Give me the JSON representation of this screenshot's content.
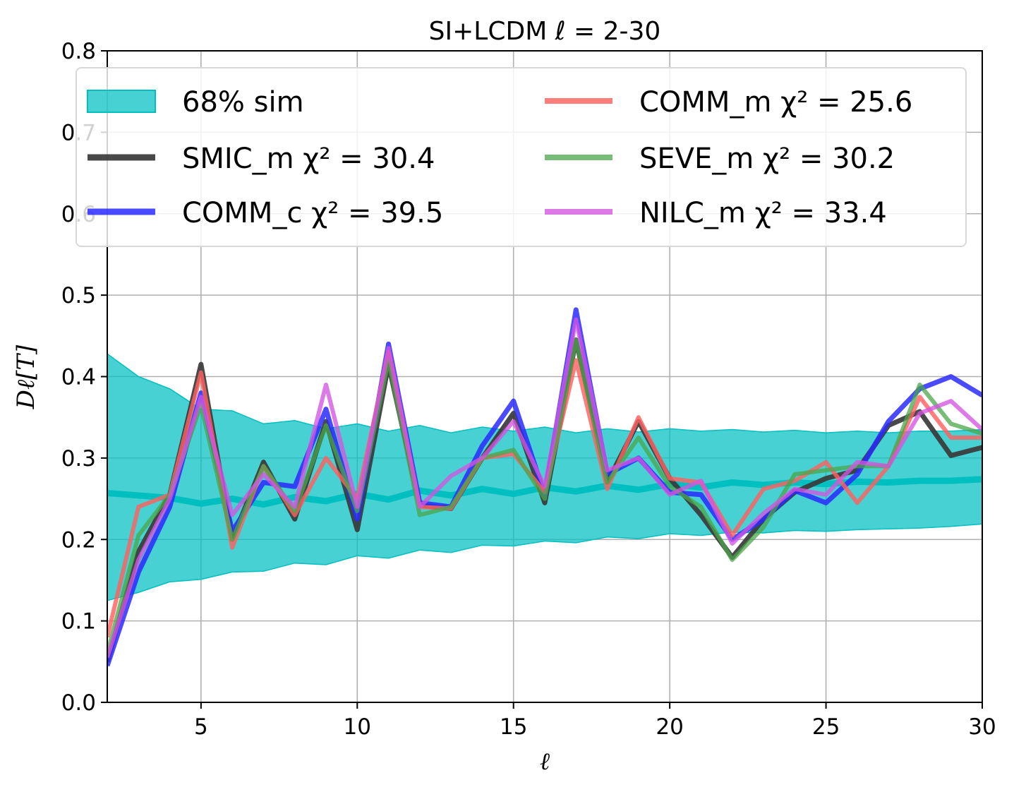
{
  "chart_data": {
    "type": "line",
    "title": "SI+LCDM  ℓ = 2-30",
    "xlabel": "ℓ",
    "ylabel": "Dℓ[T]",
    "xlim": [
      2,
      30
    ],
    "ylim": [
      0.0,
      0.8
    ],
    "grid": true,
    "x_ticks": [
      5,
      10,
      15,
      20,
      25,
      30
    ],
    "y_ticks": [
      0.0,
      0.1,
      0.2,
      0.3,
      0.4,
      0.5,
      0.6,
      0.7,
      0.8
    ],
    "x_tick_labels": [
      "5",
      "10",
      "15",
      "20",
      "25",
      "30"
    ],
    "y_tick_labels": [
      "0.0",
      "0.1",
      "0.2",
      "0.3",
      "0.4",
      "0.5",
      "0.6",
      "0.7",
      "0.8"
    ],
    "legend_position": "top",
    "x": [
      2,
      3,
      4,
      5,
      6,
      7,
      8,
      9,
      10,
      11,
      12,
      13,
      14,
      15,
      16,
      17,
      18,
      19,
      20,
      21,
      22,
      23,
      24,
      25,
      26,
      27,
      28,
      29,
      30
    ],
    "band": {
      "name": "68% sim",
      "color": "#00bfc0",
      "lower": [
        0.125,
        0.135,
        0.148,
        0.151,
        0.16,
        0.161,
        0.171,
        0.169,
        0.18,
        0.177,
        0.187,
        0.184,
        0.193,
        0.192,
        0.198,
        0.196,
        0.203,
        0.201,
        0.207,
        0.205,
        0.209,
        0.208,
        0.211,
        0.21,
        0.212,
        0.213,
        0.214,
        0.216,
        0.219
      ],
      "upper": [
        0.428,
        0.4,
        0.385,
        0.36,
        0.358,
        0.342,
        0.346,
        0.336,
        0.342,
        0.333,
        0.34,
        0.331,
        0.338,
        0.333,
        0.338,
        0.331,
        0.336,
        0.332,
        0.336,
        0.333,
        0.335,
        0.332,
        0.334,
        0.331,
        0.333,
        0.331,
        0.333,
        0.333,
        0.335
      ],
      "mean": [
        0.257,
        0.254,
        0.251,
        0.244,
        0.25,
        0.243,
        0.252,
        0.247,
        0.256,
        0.249,
        0.26,
        0.254,
        0.262,
        0.256,
        0.264,
        0.259,
        0.266,
        0.261,
        0.268,
        0.264,
        0.27,
        0.267,
        0.27,
        0.268,
        0.271,
        0.27,
        0.272,
        0.272,
        0.274
      ]
    },
    "series": [
      {
        "name": "SMIC_m",
        "legend_label": "SMIC_m",
        "chi2": "χ² = 30.4",
        "color": "#3a3a3a",
        "width": 7,
        "opacity": 0.92,
        "values": [
          0.05,
          0.185,
          0.255,
          0.415,
          0.2,
          0.295,
          0.225,
          0.345,
          0.212,
          0.415,
          0.242,
          0.238,
          0.3,
          0.355,
          0.245,
          0.445,
          0.27,
          0.345,
          0.275,
          0.23,
          0.178,
          0.225,
          0.258,
          0.275,
          0.285,
          0.34,
          0.357,
          0.303,
          0.313
        ]
      },
      {
        "name": "COMM_c",
        "legend_label": "COMM_c",
        "chi2": "χ² = 39.5",
        "color": "#2a2aff",
        "width": 7,
        "opacity": 0.85,
        "values": [
          0.045,
          0.16,
          0.24,
          0.38,
          0.21,
          0.27,
          0.265,
          0.36,
          0.225,
          0.44,
          0.245,
          0.24,
          0.315,
          0.37,
          0.255,
          0.482,
          0.28,
          0.3,
          0.258,
          0.255,
          0.2,
          0.225,
          0.26,
          0.245,
          0.28,
          0.345,
          0.385,
          0.4,
          0.377
        ]
      },
      {
        "name": "COMM_m",
        "legend_label": "COMM_m",
        "chi2": "χ² = 25.6",
        "color": "#ff6060",
        "width": 6,
        "opacity": 0.82,
        "values": [
          0.08,
          0.24,
          0.255,
          0.405,
          0.19,
          0.29,
          0.23,
          0.3,
          0.25,
          0.43,
          0.24,
          0.238,
          0.3,
          0.305,
          0.258,
          0.42,
          0.262,
          0.35,
          0.275,
          0.27,
          0.205,
          0.262,
          0.272,
          0.295,
          0.245,
          0.29,
          0.375,
          0.325,
          0.325
        ]
      },
      {
        "name": "SEVE_m",
        "legend_label": "SEVE_m",
        "chi2": "χ² = 30.2",
        "color": "#4aa64a",
        "width": 6,
        "opacity": 0.75,
        "values": [
          0.06,
          0.205,
          0.255,
          0.365,
          0.2,
          0.29,
          0.235,
          0.34,
          0.235,
          0.42,
          0.23,
          0.24,
          0.3,
          0.31,
          0.25,
          0.445,
          0.27,
          0.325,
          0.265,
          0.24,
          0.175,
          0.215,
          0.28,
          0.285,
          0.29,
          0.29,
          0.39,
          0.342,
          0.33
        ]
      },
      {
        "name": "NILC_m",
        "legend_label": "NILC_m",
        "chi2": "χ² = 33.4",
        "color": "#d455e0",
        "width": 6,
        "opacity": 0.78,
        "values": [
          0.055,
          0.175,
          0.25,
          0.375,
          0.23,
          0.28,
          0.24,
          0.39,
          0.24,
          0.435,
          0.24,
          0.278,
          0.3,
          0.345,
          0.265,
          0.47,
          0.285,
          0.3,
          0.255,
          0.272,
          0.195,
          0.232,
          0.262,
          0.255,
          0.295,
          0.29,
          0.355,
          0.37,
          0.335
        ]
      }
    ]
  }
}
